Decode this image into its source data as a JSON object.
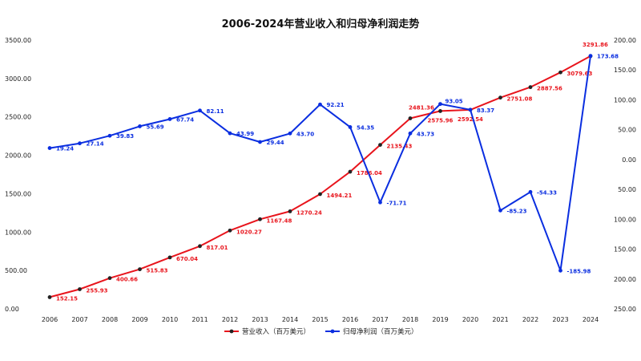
{
  "chart_data": {
    "type": "line",
    "title": "2006-2024年营业收入和归母净利润走势",
    "categories": [
      "2006",
      "2007",
      "2008",
      "2009",
      "2010",
      "2011",
      "2012",
      "2013",
      "2014",
      "2015",
      "2016",
      "2017",
      "2018",
      "2019",
      "2020",
      "2021",
      "2022",
      "2023",
      "2024"
    ],
    "left_axis": {
      "ticks": [
        "0.00",
        "500.00",
        "1000.00",
        "1500.00",
        "2000.00",
        "2500.00",
        "3000.00",
        "3500.00"
      ],
      "range": [
        0,
        3500
      ]
    },
    "right_axis": {
      "ticks": [
        "200.00",
        "150.00",
        "100.00",
        "50.00",
        "0.00",
        "-50.00",
        "-100.00",
        "-150.00",
        "-200.00",
        "-250.00"
      ],
      "range": [
        -250,
        200
      ],
      "tick_label_sign": "absolute"
    },
    "legend_position": "bottom",
    "grid": false,
    "series": [
      {
        "name": "营业收入（百万美元）",
        "axis": "left",
        "color": "#e8141c",
        "values": [
          152.15,
          255.93,
          400.66,
          515.83,
          670.04,
          817.01,
          1020.27,
          1167.48,
          1270.24,
          1494.21,
          1786.04,
          2135.43,
          2481.36,
          2575.96,
          2592.54,
          2751.08,
          2887.56,
          3079.63,
          3291.86
        ],
        "labels": [
          "152.15",
          "255.93",
          "400.66",
          "515.83",
          "670.04",
          "817.01",
          "1020.27",
          "1167.48",
          "1270.24",
          "1494.21",
          "1786.04",
          "2135.43",
          "2481.36",
          "2575.96",
          "2592.54",
          "2751.08",
          "2887.56",
          "3079.63",
          "3291.86"
        ]
      },
      {
        "name": "归母净利润（百万美元）",
        "axis": "right",
        "color": "#0a2ee0",
        "values": [
          19.24,
          27.14,
          39.83,
          55.69,
          67.74,
          82.11,
          43.99,
          29.44,
          43.7,
          92.21,
          54.35,
          -71.71,
          43.73,
          93.05,
          83.37,
          -85.23,
          -54.33,
          -185.98,
          173.68
        ],
        "labels": [
          "19.24",
          "27.14",
          "39.83",
          "55.69",
          "67.74",
          "82.11",
          "43.99",
          "29.44",
          "43.70",
          "92.21",
          "54.35",
          "-71.71",
          "43.73",
          "93.05",
          "83.37",
          "-85.23",
          "-54.33",
          "-185.98",
          "173.68"
        ]
      }
    ]
  }
}
